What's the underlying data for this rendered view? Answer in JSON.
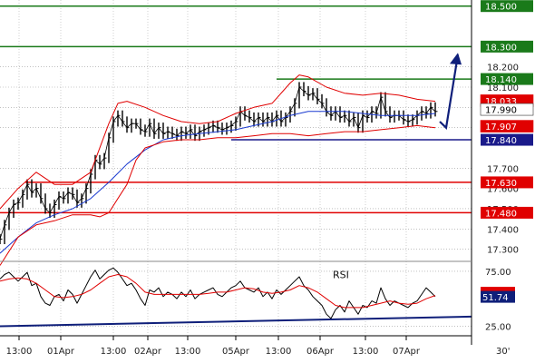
{
  "chart_data": [
    {
      "type": "line",
      "title": "",
      "y_scale": "linear",
      "ylim": [
        17.24,
        18.53
      ],
      "y_tick_labels": [
        "17.300",
        "17.400",
        "17.500",
        "17.600",
        "17.700",
        "17.900",
        "18.000",
        "18.100",
        "18.200"
      ],
      "y_tick_values": [
        17.3,
        17.4,
        17.5,
        17.6,
        17.7,
        17.9,
        18.0,
        18.1,
        18.2
      ],
      "x_labels": [
        "13:00",
        "01Apr",
        "13:00",
        "02Apr",
        "13:00",
        "05Apr",
        "13:00",
        "06Apr",
        "13:00",
        "07Apr"
      ],
      "x_label_positions": [
        21,
        67,
        125,
        163,
        207,
        260,
        307,
        353,
        403,
        448
      ],
      "timeframe": "30'",
      "x_range": [
        0,
        520
      ],
      "horizontal_levels": [
        {
          "value": 18.5,
          "label": "18.500",
          "color": "#1a7a1a",
          "from": 0
        },
        {
          "value": 18.3,
          "label": "18.300",
          "color": "#1a7a1a",
          "from": 0
        },
        {
          "value": 18.14,
          "label": "18.140",
          "color": "#1a7a1a",
          "from": 305
        },
        {
          "value": 17.84,
          "label": "17.840",
          "color": "#1a1a8a",
          "from": 255
        },
        {
          "value": 17.63,
          "label": "17.630",
          "color": "#e00000",
          "from": 28
        },
        {
          "value": 17.48,
          "label": "17.480",
          "color": "#e00000",
          "from": 0
        }
      ],
      "value_tags": [
        {
          "value": 18.033,
          "label": "18.033",
          "color": "#e00000"
        },
        {
          "value": 17.99,
          "label": "17.990",
          "color": "#ffffff"
        },
        {
          "value": 17.907,
          "label": "17.907",
          "color": "#e00000"
        }
      ],
      "forecast_arrow": [
        [
          485,
          17.93
        ],
        [
          492,
          17.9
        ],
        [
          505,
          18.26
        ]
      ],
      "series": [
        {
          "color": "#000000",
          "role": "close",
          "x": [
            0,
            5,
            10,
            15,
            20,
            25,
            30,
            35,
            40,
            45,
            50,
            55,
            60,
            65,
            70,
            75,
            80,
            85,
            90,
            95,
            100,
            105,
            110,
            115,
            120,
            125,
            130,
            135,
            140,
            145,
            150,
            155,
            160,
            165,
            170,
            175,
            180,
            185,
            190,
            195,
            200,
            205,
            210,
            215,
            220,
            225,
            230,
            235,
            240,
            245,
            250,
            255,
            260,
            265,
            270,
            275,
            280,
            285,
            290,
            295,
            300,
            305,
            310,
            315,
            320,
            325,
            330,
            335,
            340,
            345,
            350,
            355,
            360,
            365,
            370,
            375,
            380,
            385,
            390,
            395,
            400,
            405,
            410,
            415,
            420,
            425,
            430,
            435,
            440,
            445,
            450,
            455,
            460,
            465,
            470,
            475,
            480
          ],
          "values": [
            17.35,
            17.42,
            17.48,
            17.52,
            17.53,
            17.57,
            17.62,
            17.58,
            17.6,
            17.55,
            17.5,
            17.48,
            17.52,
            17.56,
            17.55,
            17.58,
            17.57,
            17.53,
            17.55,
            17.6,
            17.67,
            17.74,
            17.72,
            17.75,
            17.85,
            17.93,
            17.96,
            17.93,
            17.9,
            17.92,
            17.92,
            17.89,
            17.88,
            17.92,
            17.87,
            17.9,
            17.87,
            17.88,
            17.87,
            17.86,
            17.88,
            17.87,
            17.89,
            17.86,
            17.88,
            17.89,
            17.9,
            17.91,
            17.9,
            17.89,
            17.9,
            17.91,
            17.93,
            17.98,
            17.96,
            17.95,
            17.93,
            17.95,
            17.93,
            17.95,
            17.93,
            17.96,
            17.93,
            17.95,
            17.98,
            18.02,
            18.1,
            18.08,
            18.06,
            18.07,
            18.04,
            18.02,
            17.98,
            17.96,
            17.98,
            17.95,
            17.96,
            17.93,
            17.95,
            17.9,
            17.96,
            17.95,
            17.98,
            17.97,
            18.05,
            17.98,
            17.95,
            17.96,
            17.96,
            17.94,
            17.93,
            17.94,
            17.96,
            17.98,
            17.97,
            18.0,
            17.98
          ]
        },
        {
          "color": "#1a3ad0",
          "role": "moving-average",
          "x": [
            0,
            20,
            40,
            60,
            80,
            100,
            120,
            140,
            160,
            180,
            200,
            220,
            240,
            260,
            280,
            300,
            320,
            340,
            360,
            380,
            400,
            420,
            440,
            460,
            480
          ],
          "values": [
            17.28,
            17.36,
            17.43,
            17.47,
            17.5,
            17.55,
            17.63,
            17.72,
            17.79,
            17.84,
            17.86,
            17.87,
            17.88,
            17.89,
            17.91,
            17.93,
            17.96,
            17.98,
            17.98,
            17.98,
            17.97,
            17.96,
            17.96,
            17.96,
            17.97
          ]
        },
        {
          "color": "#e00000",
          "role": "upper-band",
          "x": [
            0,
            20,
            40,
            60,
            80,
            100,
            120,
            130,
            140,
            160,
            180,
            200,
            220,
            240,
            260,
            280,
            300,
            320,
            330,
            340,
            360,
            380,
            400,
            420,
            440,
            460,
            480
          ],
          "values": [
            17.5,
            17.6,
            17.68,
            17.62,
            17.62,
            17.68,
            17.92,
            18.02,
            18.03,
            18.0,
            17.96,
            17.93,
            17.92,
            17.93,
            17.97,
            18.0,
            18.02,
            18.12,
            18.16,
            18.15,
            18.1,
            18.07,
            18.06,
            18.07,
            18.06,
            18.04,
            18.03
          ]
        },
        {
          "color": "#e00000",
          "role": "lower-band",
          "x": [
            0,
            20,
            40,
            60,
            80,
            100,
            110,
            120,
            140,
            150,
            160,
            180,
            200,
            220,
            240,
            260,
            280,
            300,
            320,
            340,
            360,
            380,
            400,
            420,
            440,
            460,
            480
          ],
          "values": [
            17.22,
            17.36,
            17.42,
            17.44,
            17.47,
            17.47,
            17.46,
            17.48,
            17.62,
            17.74,
            17.8,
            17.83,
            17.84,
            17.84,
            17.85,
            17.85,
            17.86,
            17.87,
            17.87,
            17.86,
            17.87,
            17.88,
            17.88,
            17.89,
            17.9,
            17.91,
            17.9
          ]
        }
      ]
    },
    {
      "type": "line",
      "title": "RSI",
      "y_scale": "linear",
      "ylim": [
        18,
        84
      ],
      "y_tick_labels": [
        "75.00",
        "25.00"
      ],
      "y_tick_values": [
        75,
        25
      ],
      "value_tag": {
        "value": 51.74,
        "label": "51.74"
      },
      "trendline": [
        [
          0,
          25
        ],
        [
          520,
          33.8
        ]
      ],
      "series": [
        {
          "color": "#000000",
          "role": "rsi",
          "x": [
            0,
            5,
            10,
            15,
            20,
            25,
            30,
            35,
            40,
            45,
            50,
            55,
            60,
            65,
            70,
            75,
            80,
            85,
            90,
            95,
            100,
            105,
            110,
            115,
            120,
            125,
            130,
            135,
            140,
            145,
            150,
            155,
            160,
            165,
            170,
            175,
            180,
            185,
            190,
            195,
            200,
            205,
            210,
            215,
            220,
            225,
            230,
            235,
            240,
            245,
            250,
            255,
            260,
            265,
            270,
            275,
            280,
            285,
            290,
            295,
            300,
            305,
            310,
            315,
            320,
            325,
            330,
            335,
            340,
            345,
            350,
            355,
            360,
            365,
            370,
            375,
            380,
            385,
            390,
            395,
            400,
            405,
            410,
            415,
            420,
            425,
            430,
            435,
            440,
            445,
            450,
            455,
            460,
            465,
            470,
            475,
            480
          ],
          "values": [
            68,
            72,
            74,
            70,
            66,
            70,
            74,
            62,
            64,
            52,
            46,
            44,
            52,
            54,
            48,
            58,
            54,
            46,
            54,
            62,
            70,
            76,
            68,
            72,
            76,
            78,
            74,
            68,
            62,
            64,
            58,
            50,
            44,
            58,
            56,
            60,
            52,
            56,
            54,
            50,
            56,
            52,
            58,
            50,
            54,
            56,
            58,
            60,
            54,
            52,
            56,
            60,
            62,
            66,
            60,
            58,
            56,
            60,
            52,
            56,
            50,
            58,
            54,
            58,
            62,
            66,
            70,
            62,
            58,
            52,
            48,
            44,
            36,
            32,
            40,
            44,
            38,
            48,
            42,
            36,
            44,
            42,
            48,
            46,
            60,
            50,
            44,
            48,
            46,
            44,
            42,
            46,
            48,
            54,
            60,
            56,
            52
          ]
        },
        {
          "color": "#e00000",
          "role": "rsi-average",
          "x": [
            0,
            10,
            20,
            30,
            40,
            50,
            60,
            70,
            80,
            90,
            100,
            110,
            120,
            130,
            140,
            150,
            160,
            170,
            180,
            190,
            200,
            210,
            220,
            230,
            240,
            250,
            260,
            270,
            280,
            290,
            300,
            310,
            320,
            330,
            340,
            350,
            360,
            370,
            380,
            390,
            400,
            410,
            420,
            430,
            440,
            450,
            460,
            470,
            480
          ],
          "values": [
            66,
            68,
            69,
            68,
            64,
            58,
            52,
            51,
            52,
            54,
            58,
            64,
            70,
            72,
            70,
            64,
            56,
            54,
            54,
            54,
            54,
            54,
            54,
            55,
            56,
            56,
            58,
            60,
            59,
            56,
            55,
            56,
            58,
            62,
            60,
            56,
            50,
            44,
            42,
            42,
            42,
            44,
            46,
            48,
            46,
            45,
            46,
            50,
            53
          ]
        }
      ]
    }
  ]
}
